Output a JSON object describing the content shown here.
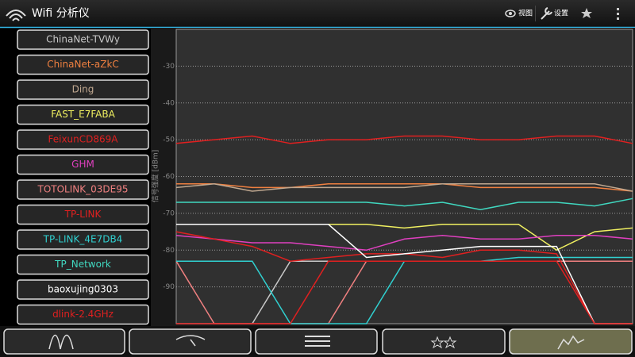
{
  "header": {
    "title": "Wifi 分析仪",
    "menu": [
      "视图",
      "设置"
    ]
  },
  "chart_data": {
    "type": "line",
    "y_label": "信号强度 [dBm]",
    "ylim": [
      -100,
      -20
    ],
    "yticks": [
      -30,
      -40,
      -50,
      -60,
      -70,
      -80,
      -90
    ],
    "grid": true,
    "series": [
      {
        "name": "ChinaNet-TVWy",
        "color": "#c8c8c8",
        "values": [
          -100,
          -100,
          -100,
          -83,
          -83,
          -83,
          -83,
          -83,
          -83,
          -83,
          -83,
          -83,
          -83
        ]
      },
      {
        "name": "ChinaNet-aZkC",
        "color": "#f08040",
        "values": [
          -62,
          -62,
          -63,
          -63,
          -62,
          -62,
          -62,
          -62,
          -63,
          -63,
          -63,
          -63,
          -64
        ]
      },
      {
        "name": "Ding",
        "color": "#c0a890",
        "values": [
          -63,
          -62,
          -64,
          -63,
          -63,
          -63,
          -63,
          -62,
          -62,
          -62,
          -62,
          -62,
          -64
        ]
      },
      {
        "name": "FAST_E7FABA",
        "color": "#f0f060",
        "values": [
          -73,
          -73,
          -73,
          -73,
          -73,
          -73,
          -74,
          -73,
          -73,
          -73,
          -80,
          -75,
          -74
        ]
      },
      {
        "name": "FeixunCD869A",
        "color": "#e02020",
        "values": [
          -51,
          -50,
          -49,
          -51,
          -50,
          -50,
          -49,
          -49,
          -50,
          -50,
          -49,
          -49,
          -51
        ]
      },
      {
        "name": "GHM",
        "color": "#e040c0",
        "values": [
          -76,
          -77,
          -78,
          -78,
          -79,
          -80,
          -77,
          -76,
          -77,
          -77,
          -76,
          -76,
          -77
        ]
      },
      {
        "name": "TOTOLINK_03DE95",
        "color": "#f08080",
        "values": [
          -83,
          -100,
          -100,
          -100,
          -100,
          -83,
          -83,
          -83,
          -83,
          -83,
          -83,
          -83,
          -83
        ]
      },
      {
        "name": "TP-LINK",
        "color": "#e02020",
        "values": [
          -75,
          -77,
          -79,
          -83,
          -82,
          -81,
          -81,
          -82,
          -80,
          -80,
          -81,
          -100,
          -100
        ]
      },
      {
        "name": "TP-LINK_4E7DB4",
        "color": "#30d0d0",
        "values": [
          -83,
          -83,
          -83,
          -100,
          -100,
          -100,
          -83,
          -83,
          -83,
          -82,
          -82,
          -82,
          -82
        ]
      },
      {
        "name": "TP_Network",
        "color": "#40d8c0",
        "values": [
          -67,
          -67,
          -67,
          -67,
          -67,
          -67,
          -68,
          -67,
          -69,
          -67,
          -67,
          -68,
          -66
        ]
      },
      {
        "name": "baoxujing0303",
        "color": "#ffffff",
        "values": [
          -73,
          -73,
          -73,
          -73,
          -73,
          -82,
          -81,
          -80,
          -79,
          -79,
          -79,
          -100,
          -100
        ]
      },
      {
        "name": "dlink-2.4GHz",
        "color": "#e02020",
        "values": [
          -100,
          -100,
          -100,
          -100,
          -83,
          -83,
          -83,
          -83,
          -83,
          -83,
          -83,
          -100,
          -100
        ]
      }
    ]
  }
}
